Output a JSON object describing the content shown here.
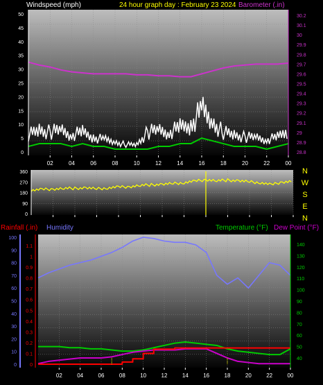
{
  "header": {
    "left_label": "Windspeed (mph)",
    "center_label": "24 hour graph day : February 23 2024",
    "right_label": "Barometer (.in)"
  },
  "colors": {
    "background": "#000000",
    "wind_avg": "#00cc00",
    "wind_gust": "#ffffff",
    "barometer": "#cc33cc",
    "direction": "#ffff00",
    "humidity": "#7777ff",
    "temperature": "#00cc00",
    "dewpoint": "#cc00cc",
    "rainfall": "#ff0000",
    "panel_top": "#b8b8b8",
    "panel_bottom": "#000000"
  },
  "chart_data": [
    {
      "type": "line",
      "panel": "wind_barometer",
      "x_ticks": [
        "02",
        "04",
        "06",
        "08",
        "10",
        "12",
        "14",
        "16",
        "18",
        "20",
        "22",
        "00"
      ],
      "y_left_ticks": [
        "0",
        "5",
        "10",
        "15",
        "20",
        "25",
        "30",
        "35",
        "40",
        "45",
        "50"
      ],
      "y_left_range": [
        0,
        50
      ],
      "y_right_ticks": [
        "28.8",
        "28.9",
        "29",
        "29.1",
        "29.2",
        "29.3",
        "29.4",
        "29.5",
        "29.6",
        "29.7",
        "29.8",
        "29.9",
        "30",
        "30.1",
        "30.2"
      ],
      "y_right_range": [
        28.8,
        30.2
      ],
      "hours": [
        0,
        1,
        2,
        3,
        4,
        5,
        6,
        7,
        8,
        9,
        10,
        11,
        12,
        13,
        14,
        15,
        16,
        17,
        18,
        19,
        20,
        21,
        22,
        23,
        24
      ],
      "series": [
        {
          "name": "Windspeed",
          "values": [
            2,
            3,
            3,
            3,
            2,
            3,
            2,
            2,
            1,
            1,
            1,
            1,
            2,
            2,
            3,
            3,
            5,
            4,
            3,
            2,
            2,
            2,
            1,
            2,
            3
          ]
        },
        {
          "name": "Gust",
          "values": [
            7,
            9,
            8,
            9,
            7,
            8,
            6,
            5,
            4,
            3,
            3,
            8,
            9,
            8,
            10,
            11,
            17,
            12,
            8,
            7,
            6,
            6,
            5,
            6,
            9
          ]
        },
        {
          "name": "Barometer",
          "values": [
            29.72,
            29.69,
            29.67,
            29.64,
            29.62,
            29.61,
            29.6,
            29.6,
            29.6,
            29.6,
            29.59,
            29.59,
            29.58,
            29.58,
            29.57,
            29.57,
            29.6,
            29.63,
            29.66,
            29.68,
            29.69,
            29.7,
            29.7,
            29.7,
            29.71
          ]
        }
      ]
    },
    {
      "type": "line",
      "panel": "wind_direction",
      "x_ticks": [],
      "y_ticks": [
        "0",
        "90",
        "180",
        "270",
        "360"
      ],
      "y_range": [
        0,
        360
      ],
      "compass_labels": [
        "N",
        "W",
        "S",
        "E",
        "N"
      ],
      "hours": [
        0,
        1,
        2,
        3,
        4,
        5,
        6,
        7,
        8,
        9,
        10,
        11,
        12,
        13,
        14,
        15,
        16,
        17,
        18,
        19,
        20,
        21,
        22,
        23,
        24
      ],
      "series": [
        {
          "name": "Wind Direction",
          "values": [
            200,
            205,
            210,
            215,
            215,
            220,
            210,
            220,
            225,
            230,
            240,
            245,
            250,
            255,
            265,
            275,
            290,
            280,
            285,
            280,
            270,
            265,
            245,
            270,
            275
          ]
        }
      ]
    },
    {
      "type": "line",
      "panel": "temp_humidity_rain",
      "labels": {
        "rainfall": "Rainfall (.in)",
        "humidity": "Humidity",
        "temperature": "Temperature (°F)",
        "dewpoint": "Dew Point (°F)"
      },
      "x_ticks": [
        "02",
        "04",
        "06",
        "08",
        "10",
        "12",
        "14",
        "16",
        "18",
        "20",
        "22",
        "00"
      ],
      "y_humidity_ticks": [
        "0",
        "10",
        "20",
        "30",
        "40",
        "50",
        "60",
        "70",
        "80",
        "90",
        "100"
      ],
      "y_humidity_range": [
        0,
        100
      ],
      "y_rain_ticks": [
        "0",
        "0.1",
        "0.2",
        "0.3",
        "0.4",
        "0.5",
        "0.6",
        "0.7",
        "0.8",
        "0.9",
        "1",
        "1.1"
      ],
      "y_rain_range": [
        0,
        1.15
      ],
      "y_temp_ticks": [
        "40",
        "50",
        "60",
        "70",
        "80",
        "90",
        "100",
        "110",
        "120",
        "130",
        "140"
      ],
      "y_temp_range": [
        32,
        146
      ],
      "hours": [
        0,
        1,
        2,
        3,
        4,
        5,
        6,
        7,
        8,
        9,
        10,
        11,
        12,
        13,
        14,
        15,
        16,
        17,
        18,
        19,
        20,
        21,
        22,
        23,
        24
      ],
      "series": [
        {
          "name": "Humidity",
          "values": [
            68,
            72,
            75,
            78,
            80,
            82,
            85,
            88,
            92,
            97,
            100,
            99,
            97,
            96,
            96,
            94,
            88,
            70,
            63,
            68,
            60,
            70,
            80,
            78,
            70
          ]
        },
        {
          "name": "Temperature",
          "values": [
            50,
            50,
            50,
            49,
            49,
            48,
            48,
            47,
            46,
            46,
            47,
            49,
            51,
            53,
            54,
            53,
            52,
            51,
            48,
            46,
            45,
            44,
            43,
            43,
            48
          ]
        },
        {
          "name": "Dew Point",
          "values": [
            35,
            37,
            38,
            39,
            40,
            40,
            40,
            41,
            43,
            45,
            46,
            47,
            47,
            47,
            48,
            48,
            48,
            44,
            40,
            37,
            36,
            35,
            35,
            35,
            35
          ]
        },
        {
          "name": "Rainfall",
          "values": [
            0,
            0,
            0,
            0,
            0,
            0,
            0,
            0,
            0.02,
            0.05,
            0.1,
            0.14,
            0.14,
            0.15,
            0.15,
            0.15,
            0.15,
            0.15,
            0.15,
            0.15,
            0.15,
            0.15,
            0.15,
            0.15,
            0.15
          ]
        }
      ]
    }
  ]
}
